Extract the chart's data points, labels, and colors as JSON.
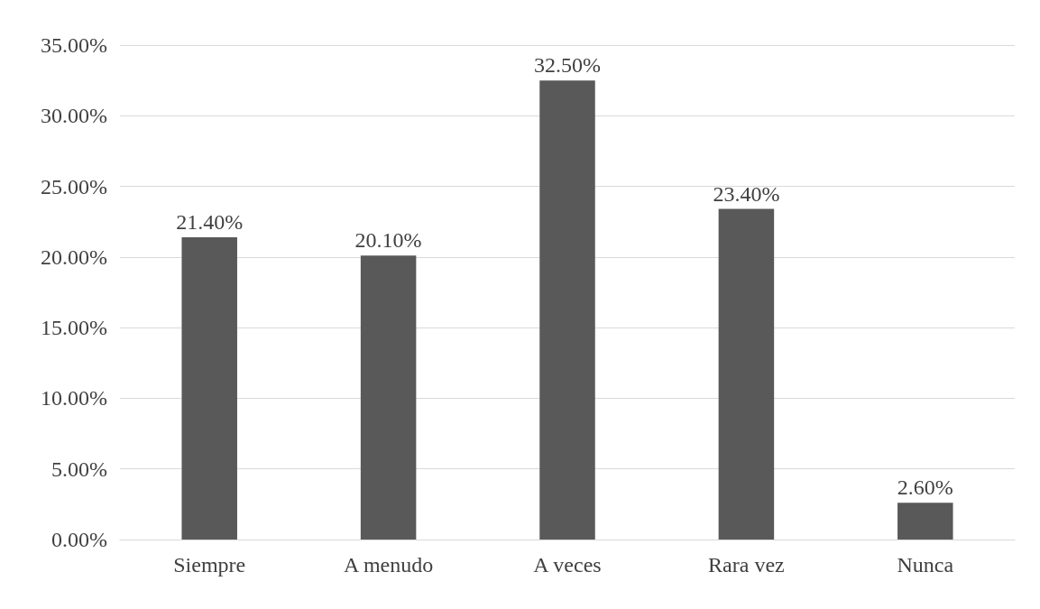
{
  "chart_data": {
    "type": "bar",
    "categories": [
      "Siempre",
      "A menudo",
      "A veces",
      "Rara vez",
      "Nunca"
    ],
    "values": [
      21.4,
      20.1,
      32.5,
      23.4,
      2.6
    ],
    "value_labels": [
      "21.40%",
      "20.10%",
      "32.50%",
      "23.40%",
      "2.60%"
    ],
    "color": "#595959",
    "ylim": [
      0,
      35
    ],
    "yticks": [
      {
        "value": 0,
        "label": "0.00%"
      },
      {
        "value": 5,
        "label": "5.00%"
      },
      {
        "value": 10,
        "label": "10.00%"
      },
      {
        "value": 15,
        "label": "15.00%"
      },
      {
        "value": 20,
        "label": "20.00%"
      },
      {
        "value": 25,
        "label": "25.00%"
      },
      {
        "value": 30,
        "label": "30.00%"
      },
      {
        "value": 35,
        "label": "35.00%"
      }
    ],
    "grid": "y"
  }
}
